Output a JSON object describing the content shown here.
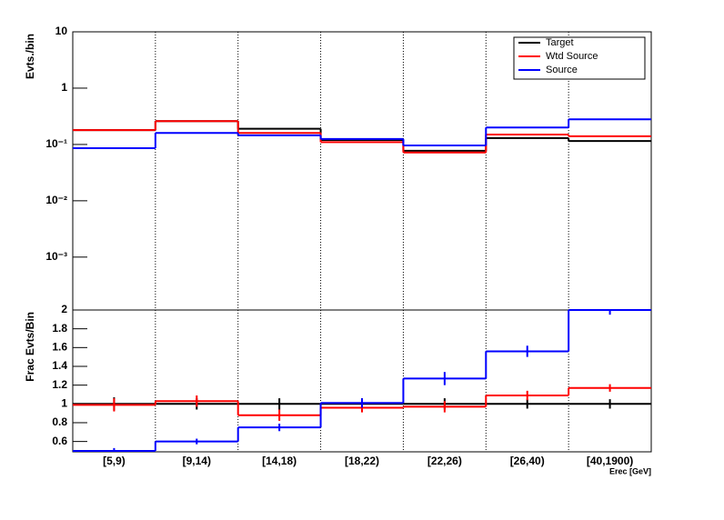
{
  "chart_data": [
    {
      "type": "step",
      "ylabel": "Evts./bin",
      "log": true,
      "categories": [
        "[5,9)",
        "[9,14)",
        "[14,18)",
        "[18,22)",
        "[22,26)",
        "[26,40)",
        "[40,1900)"
      ],
      "ylim": [
        0.000115,
        10
      ],
      "yticks": [
        10,
        1,
        {
          "value": 0.1,
          "label": "10⁻¹"
        },
        {
          "value": 0.01,
          "label": "10⁻²"
        },
        {
          "value": 0.001,
          "label": "10⁻³"
        }
      ],
      "grid": true,
      "legend": "upper right",
      "series": [
        {
          "name": "Target",
          "color": "#000000",
          "values": [
            0.18,
            0.26,
            0.19,
            0.12,
            0.077,
            0.13,
            0.115
          ]
        },
        {
          "name": "Wtd Source",
          "color": "#ff0000",
          "values": [
            0.18,
            0.26,
            0.16,
            0.11,
            0.072,
            0.15,
            0.14
          ]
        },
        {
          "name": "Source",
          "color": "#0000ff",
          "values": [
            0.086,
            0.16,
            0.145,
            0.125,
            0.096,
            0.2,
            0.28
          ]
        }
      ]
    },
    {
      "type": "step",
      "ylabel": "Frac Evts/Bin",
      "xlabel": "Erec [GeV]",
      "categories": [
        "[5,9)",
        "[9,14)",
        "[14,18)",
        "[18,22)",
        "[22,26)",
        "[26,40)",
        "[40,1900)"
      ],
      "ylim": [
        0.49,
        2
      ],
      "yticks": [
        0.6,
        0.8,
        1,
        1.2,
        1.4,
        1.6,
        1.8,
        2
      ],
      "grid": true,
      "series": [
        {
          "name": "Target",
          "color": "#000000",
          "values": [
            1,
            1,
            1,
            1,
            1,
            1,
            1
          ],
          "errors": [
            0.07,
            0.06,
            0.06,
            0.06,
            0.06,
            0.05,
            0.05
          ]
        },
        {
          "name": "Wtd Source",
          "color": "#ff0000",
          "values": [
            0.99,
            1.03,
            0.88,
            0.96,
            0.97,
            1.09,
            1.17
          ],
          "errors": [
            0.07,
            0.06,
            0.06,
            0.05,
            0.06,
            0.05,
            0.04
          ]
        },
        {
          "name": "Source",
          "color": "#0000ff",
          "values": [
            0.5,
            0.6,
            0.75,
            1.01,
            1.27,
            1.56,
            2.0
          ],
          "errors": [
            0.03,
            0.03,
            0.04,
            0.05,
            0.07,
            0.06,
            0.05
          ]
        }
      ]
    }
  ]
}
